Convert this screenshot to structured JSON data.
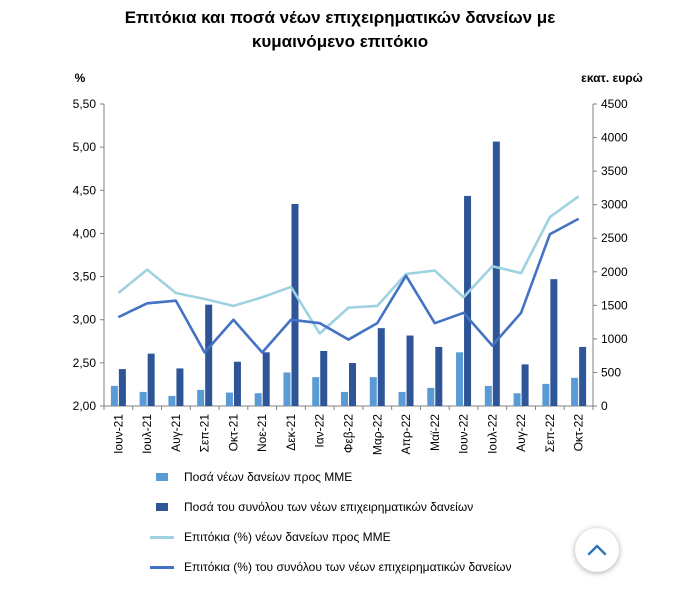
{
  "chart_data": {
    "type": "bar+line",
    "title_line1": "Επιτόκια και ποσά νέων επιχειρηματικών δανείων με",
    "title_line2": "κυμαινόμενο επιτόκιο",
    "y_left_label": "%",
    "y_right_label": "εκατ. ευρώ",
    "y_left_range": [
      2.0,
      5.5
    ],
    "y_left_ticks": [
      "2,00",
      "2,50",
      "3,00",
      "3,50",
      "4,00",
      "4,50",
      "5,00",
      "5,50"
    ],
    "y_right_range": [
      0,
      4500
    ],
    "y_right_ticks": [
      "0",
      "500",
      "1000",
      "1500",
      "2000",
      "2500",
      "3000",
      "3500",
      "4000",
      "4500"
    ],
    "categories": [
      "Ιουν-21",
      "Ιουλ-21",
      "Αυγ-21",
      "Σεπ-21",
      "Οκτ-21",
      "Νοε-21",
      "Δεκ-21",
      "Ιαν-22",
      "Φεβ-22",
      "Μαρ-22",
      "Απρ-22",
      "Μαϊ-22",
      "Ιουν-22",
      "Ιουλ-22",
      "Αυγ-22",
      "Σεπ-22",
      "Οκτ-22"
    ],
    "series": [
      {
        "name": "Ποσά νέων δανείων προς ΜΜΕ",
        "kind": "bar",
        "axis": "right",
        "color": "#5b9bd5",
        "values": [
          300,
          210,
          150,
          240,
          200,
          190,
          500,
          430,
          210,
          430,
          210,
          270,
          800,
          300,
          190,
          330,
          420
        ]
      },
      {
        "name": "Ποσά του συνόλου των νέων επιχειρηματικών δανείων",
        "kind": "bar",
        "axis": "right",
        "color": "#2e5597",
        "values": [
          550,
          780,
          560,
          1510,
          660,
          800,
          3010,
          820,
          640,
          1160,
          1050,
          880,
          3130,
          3940,
          620,
          1890,
          880
        ]
      },
      {
        "name": "Επιτόκια (%) νέων δανείων προς ΜΜΕ",
        "kind": "line",
        "axis": "left",
        "color": "#9fd2e0",
        "values": [
          3.31,
          3.58,
          3.31,
          3.24,
          3.16,
          3.26,
          3.38,
          2.84,
          3.14,
          3.16,
          3.53,
          3.57,
          3.26,
          3.62,
          3.54,
          4.19,
          4.43
        ]
      },
      {
        "name": "Επιτόκια (%) του συνόλου των νέων επιχειρηματικών δανείων",
        "kind": "line",
        "axis": "left",
        "color": "#4472c4",
        "values": [
          3.03,
          3.19,
          3.22,
          2.62,
          3.0,
          2.62,
          3.0,
          2.96,
          2.77,
          2.96,
          3.51,
          2.96,
          3.08,
          2.7,
          3.08,
          3.99,
          4.17
        ]
      }
    ],
    "grid": false,
    "legend_position": "bottom"
  },
  "ui": {
    "scroll_top_icon": "chevron-up-icon"
  }
}
